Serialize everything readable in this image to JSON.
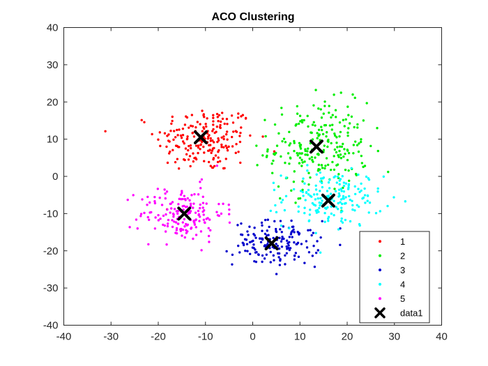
{
  "chart_data": {
    "type": "scatter",
    "title": "ACO Clustering",
    "xlabel": "",
    "ylabel": "",
    "xlim": [
      -40,
      40
    ],
    "ylim": [
      -40,
      40
    ],
    "xticks": [
      -40,
      -30,
      -20,
      -10,
      0,
      10,
      20,
      30,
      40
    ],
    "yticks": [
      -40,
      -30,
      -20,
      -10,
      0,
      10,
      20,
      30,
      40
    ],
    "grid": false,
    "legend_position": "bottom-right",
    "series": [
      {
        "name": "1",
        "color": "#ff0000",
        "marker": "dot",
        "n_points": 200,
        "center": [
          -10,
          10
        ],
        "spread": [
          7,
          6
        ]
      },
      {
        "name": "2",
        "color": "#00ee00",
        "marker": "dot",
        "n_points": 240,
        "center": [
          14,
          8
        ],
        "spread": [
          7,
          8
        ]
      },
      {
        "name": "3",
        "color": "#0000cc",
        "marker": "dot",
        "n_points": 160,
        "center": [
          5,
          -18
        ],
        "spread": [
          6,
          4
        ]
      },
      {
        "name": "4",
        "color": "#00ffff",
        "marker": "dot",
        "n_points": 180,
        "center": [
          17,
          -6
        ],
        "spread": [
          7,
          5
        ]
      },
      {
        "name": "5",
        "color": "#ff00ff",
        "marker": "dot",
        "n_points": 170,
        "center": [
          -15,
          -10
        ],
        "spread": [
          6,
          5
        ]
      }
    ],
    "centroids": {
      "name": "data1",
      "color": "#000000",
      "marker": "x",
      "points": [
        [
          -11,
          10.5
        ],
        [
          13.5,
          8
        ],
        [
          4,
          -18
        ],
        [
          16,
          -6.5
        ],
        [
          -14.5,
          -10
        ]
      ]
    }
  }
}
